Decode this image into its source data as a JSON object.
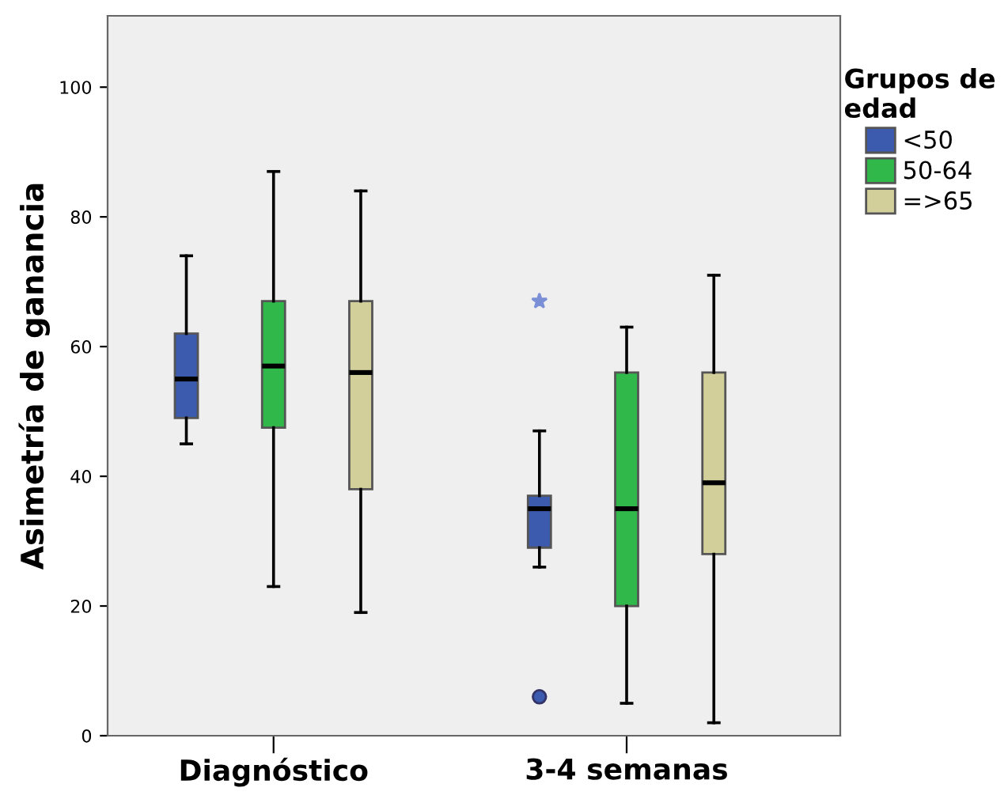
{
  "chart_data": {
    "type": "box",
    "ylabel": "Asimetría de ganancia",
    "legend_title": "Grupos de edad",
    "categories": [
      "Diagnóstico",
      "3-4 semanas"
    ],
    "ylim": [
      0,
      111
    ],
    "yticks": [
      0,
      20,
      40,
      60,
      80,
      100
    ],
    "grid": false,
    "legend": "top right",
    "series": [
      {
        "name": "<50",
        "color": "#3c5aae",
        "boxes": [
          {
            "low": 45,
            "q1": 49,
            "median": 55,
            "q3": 62,
            "high": 74
          },
          {
            "low": 26,
            "q1": 29,
            "median": 35,
            "q3": 37,
            "high": 47,
            "outliers": [
              6,
              67
            ]
          }
        ]
      },
      {
        "name": "50-64",
        "color": "#30b94a",
        "boxes": [
          {
            "low": 23,
            "q1": 47.5,
            "median": 57,
            "q3": 67,
            "high": 87
          },
          {
            "low": 5,
            "q1": 20,
            "median": 35,
            "q3": 56,
            "high": 63
          }
        ]
      },
      {
        "name": "=>65",
        "color": "#d3cf9a",
        "boxes": [
          {
            "low": 19,
            "q1": 38,
            "median": 56,
            "q3": 67,
            "high": 84
          },
          {
            "low": 2,
            "q1": 28,
            "median": 39,
            "q3": 56,
            "high": 71
          }
        ]
      }
    ]
  }
}
